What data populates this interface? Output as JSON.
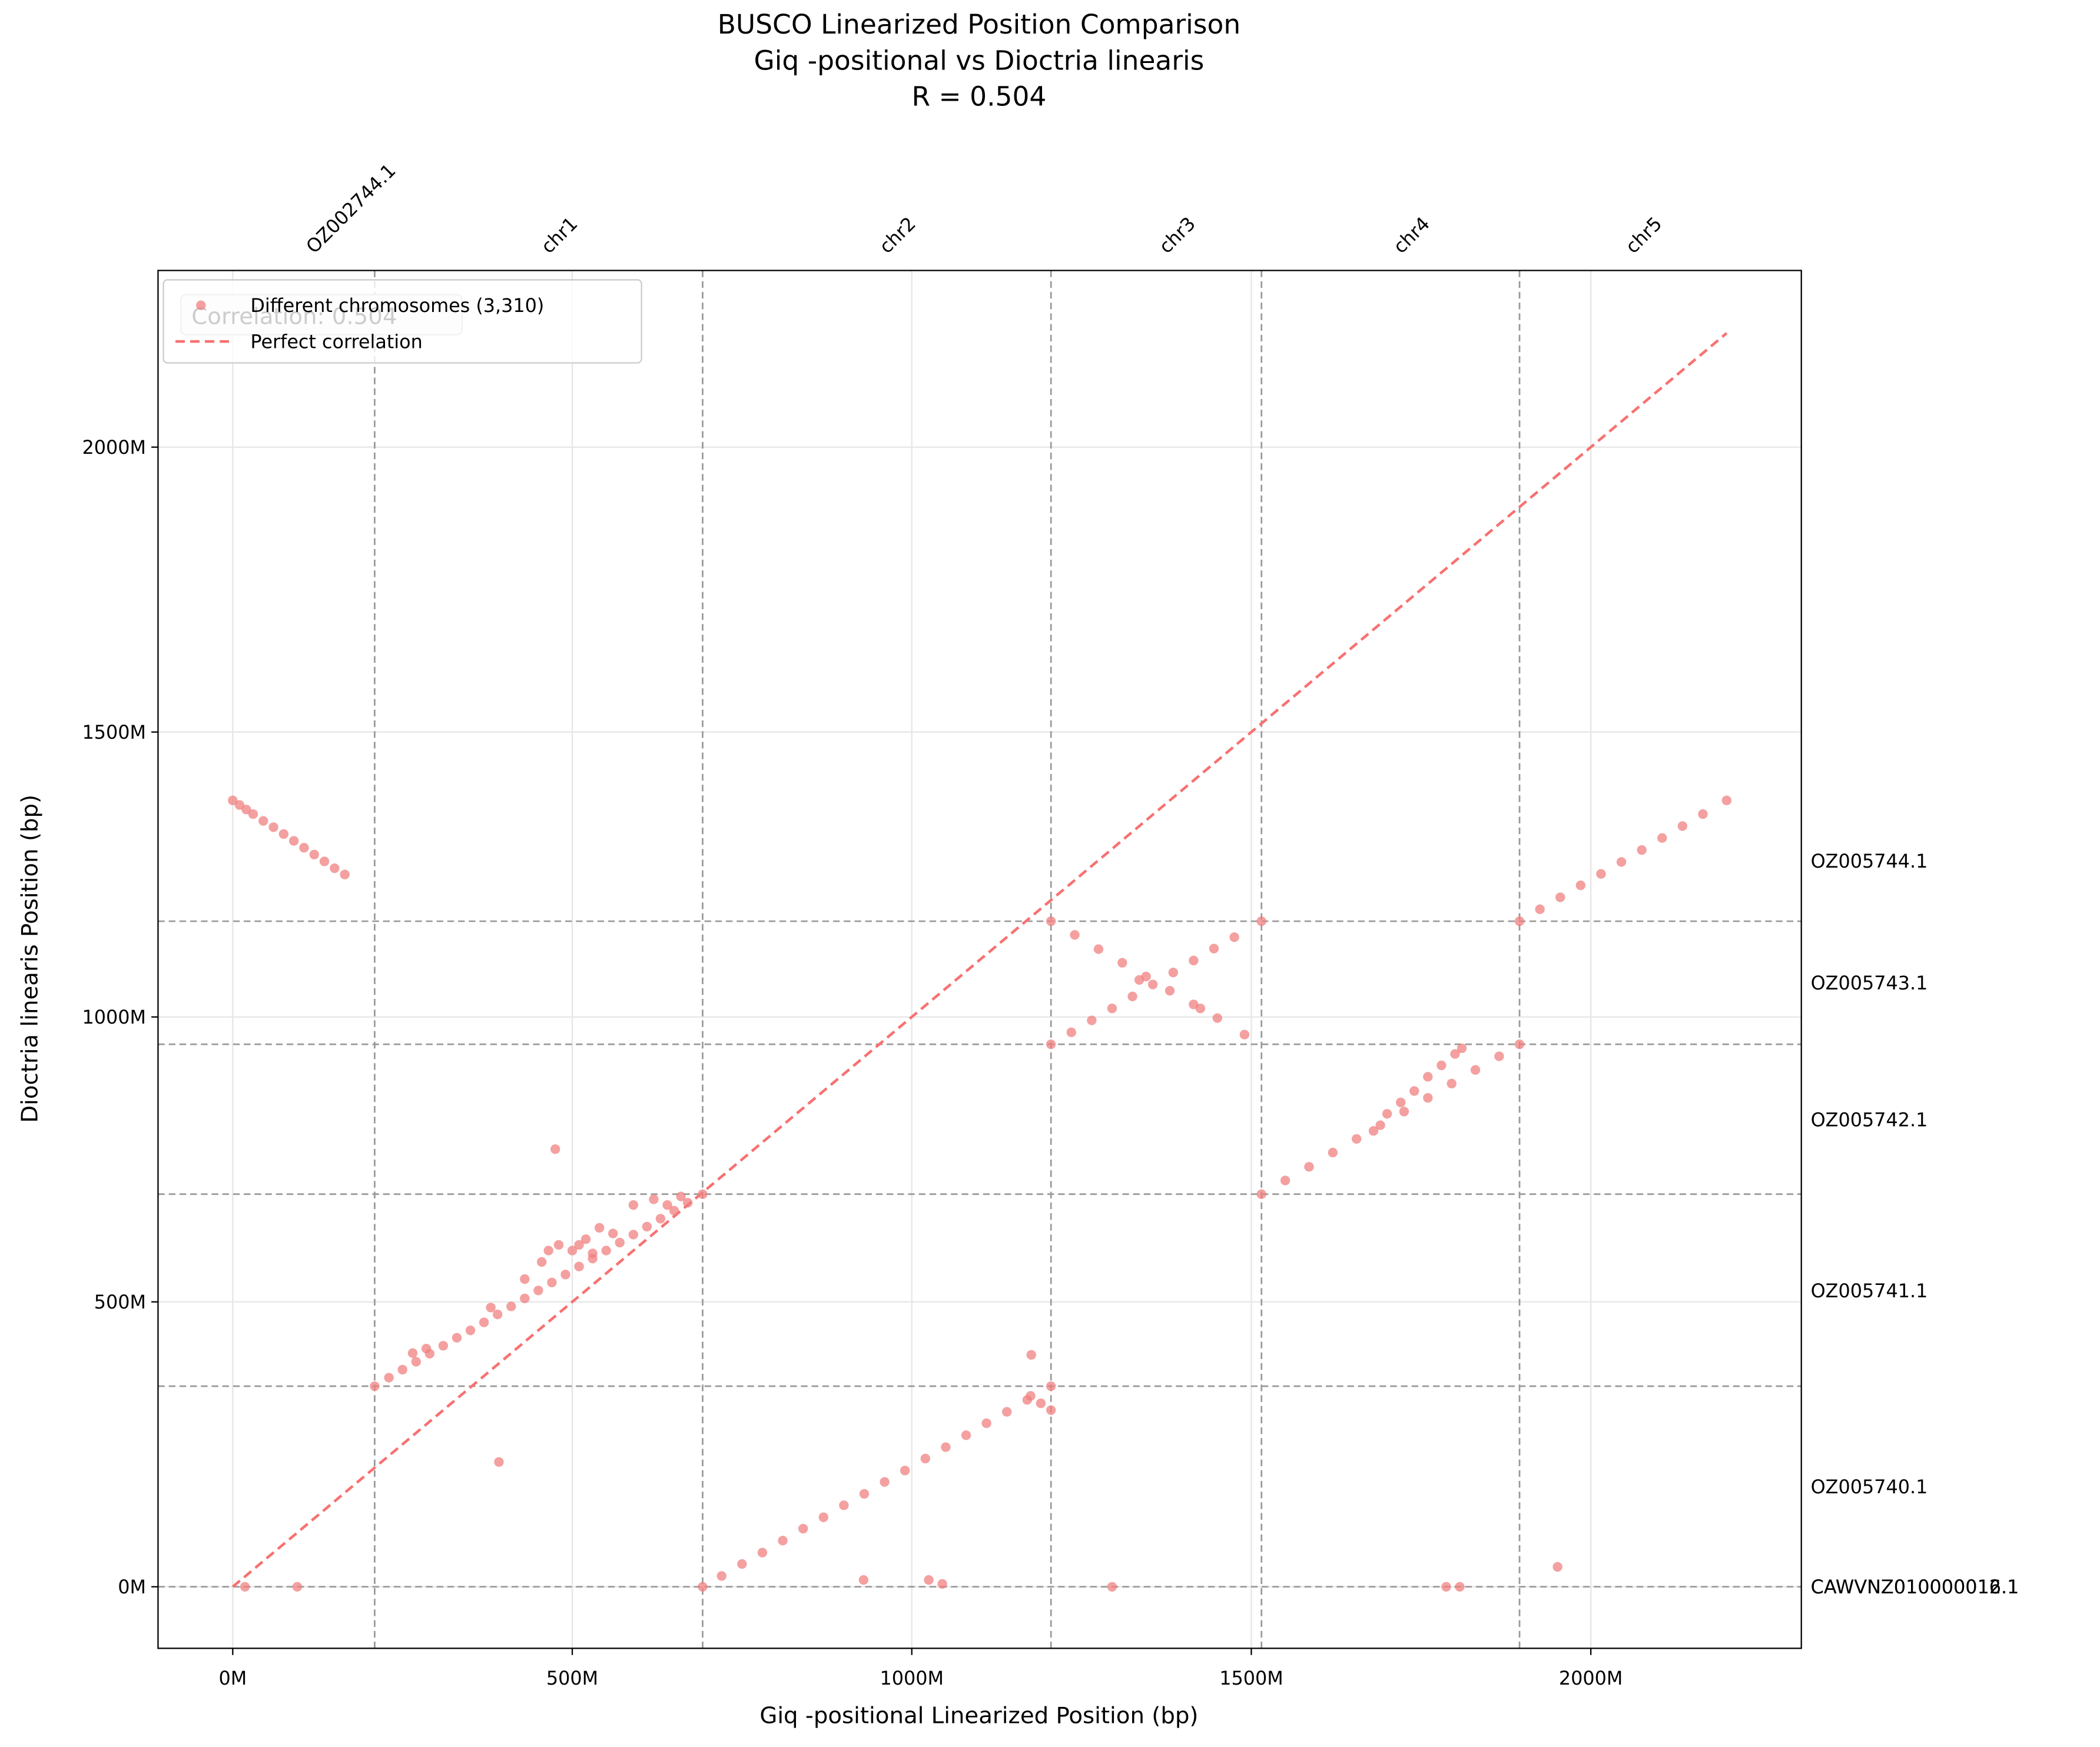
{
  "chart_data": {
    "type": "scatter",
    "title": [
      "BUSCO Linearized Position Comparison",
      "Giq -positional vs Dioctria linearis",
      "R = 0.504"
    ],
    "x_label": "Giq -positional Linearized Position (bp)",
    "y_label": "Dioctria linearis Position (bp)",
    "xlim": [
      -110,
      2310
    ],
    "ylim": [
      -108,
      2310
    ],
    "xticks": [
      {
        "value": 0,
        "label": "0M"
      },
      {
        "value": 500,
        "label": "500M"
      },
      {
        "value": 1000,
        "label": "1000M"
      },
      {
        "value": 1500,
        "label": "1500M"
      },
      {
        "value": 2000,
        "label": "2000M"
      }
    ],
    "yticks": [
      {
        "value": 0,
        "label": "0M"
      },
      {
        "value": 500,
        "label": "500M"
      },
      {
        "value": 1000,
        "label": "1000M"
      },
      {
        "value": 1500,
        "label": "1500M"
      },
      {
        "value": 2000,
        "label": "2000M"
      }
    ],
    "grid": true,
    "legend": "upper left",
    "annotation": "Correlation: 0.504",
    "series": [
      {
        "name": "Different chromosomes (3,310)",
        "color": "#f08080",
        "x": [
          0,
          10,
          20,
          30,
          45,
          60,
          75,
          90,
          105,
          120,
          135,
          150,
          165,
          209,
          230,
          250,
          270,
          290,
          310,
          330,
          350,
          370,
          390,
          410,
          430,
          450,
          470,
          490,
          510,
          530,
          550,
          570,
          590,
          610,
          630,
          650,
          670,
          692,
          265,
          285,
          380,
          430,
          455,
          465,
          480,
          500,
          520,
          540,
          560,
          590,
          620,
          640,
          660,
          530,
          510,
          475,
          392,
          692,
          720,
          750,
          780,
          810,
          840,
          870,
          900,
          930,
          960,
          990,
          1020,
          1050,
          1080,
          1110,
          1140,
          1170,
          1205,
          1175,
          1190,
          1205,
          1176,
          929,
          1025,
          1045,
          1295,
          1205,
          1235,
          1265,
          1295,
          1325,
          1355,
          1385,
          1415,
          1445,
          1475,
          1515,
          1205,
          1240,
          1275,
          1310,
          1345,
          1380,
          1415,
          1450,
          1490,
          1335,
          1425,
          1515,
          1550,
          1585,
          1620,
          1655,
          1690,
          1725,
          1760,
          1795,
          1830,
          1865,
          1895,
          1680,
          1700,
          1720,
          1740,
          1760,
          1780,
          1800,
          1810,
          1787,
          1807,
          1951,
          1895,
          1925,
          1955,
          1985,
          2015,
          2045,
          2075,
          2105,
          2135,
          2165,
          2200,
          18,
          95
        ],
        "y": [
          1380,
          1372,
          1364,
          1356,
          1344,
          1333,
          1321,
          1309,
          1297,
          1285,
          1273,
          1261,
          1250,
          352,
          367,
          381,
          395,
          409,
          423,
          437,
          450,
          464,
          478,
          492,
          506,
          520,
          534,
          548,
          562,
          576,
          590,
          604,
          618,
          632,
          646,
          660,
          674,
          689,
          410,
          418,
          490,
          540,
          570,
          590,
          600,
          590,
          610,
          630,
          620,
          670,
          680,
          670,
          685,
          585,
          600,
          768,
          219,
          0,
          19,
          40,
          60,
          81,
          102,
          122,
          143,
          163,
          184,
          204,
          225,
          245,
          266,
          287,
          307,
          328,
          352,
          335,
          322,
          310,
          407,
          12,
          12,
          5,
          0,
          952,
          973,
          994,
          1015,
          1036,
          1057,
          1078,
          1099,
          1120,
          1140,
          1168,
          1168,
          1144,
          1119,
          1095,
          1071,
          1046,
          1022,
          998,
          969,
          1065,
          1015,
          689,
          713,
          737,
          762,
          786,
          810,
          834,
          858,
          883,
          907,
          931,
          952,
          800,
          830,
          850,
          870,
          895,
          915,
          935,
          945,
          0,
          0,
          35,
          1168,
          1189,
          1210,
          1231,
          1251,
          1272,
          1293,
          1314,
          1335,
          1356,
          1380,
          0,
          0
        ]
      }
    ],
    "reference_line": {
      "name": "Perfect correlation",
      "color": "#f87171",
      "x": [
        0,
        2200
      ],
      "y": [
        0,
        2200
      ]
    },
    "x_boundaries": [
      209,
      692,
      1205,
      1515,
      1895
    ],
    "y_boundaries": [
      0,
      352,
      689,
      952,
      1168
    ],
    "top_labels": [
      {
        "value": 104,
        "label": "OZ002744.1"
      },
      {
        "value": 450,
        "label": "chr1"
      },
      {
        "value": 948,
        "label": "chr2"
      },
      {
        "value": 1360,
        "label": "chr3"
      },
      {
        "value": 1705,
        "label": "chr4"
      },
      {
        "value": 2047,
        "label": "chr5"
      }
    ],
    "right_labels": [
      {
        "value": 1274,
        "label": "OZ005744.1"
      },
      {
        "value": 1060,
        "label": "OZ005743.1"
      },
      {
        "value": 820,
        "label": "OZ005742.1"
      },
      {
        "value": 520,
        "label": "OZ005741.1"
      },
      {
        "value": 176,
        "label": "OZ005740.1"
      },
      {
        "value": 0,
        "label": "CAWVNZ010000012.1"
      },
      {
        "value": 0,
        "label": "CAWVNZ010000016.1"
      }
    ]
  }
}
